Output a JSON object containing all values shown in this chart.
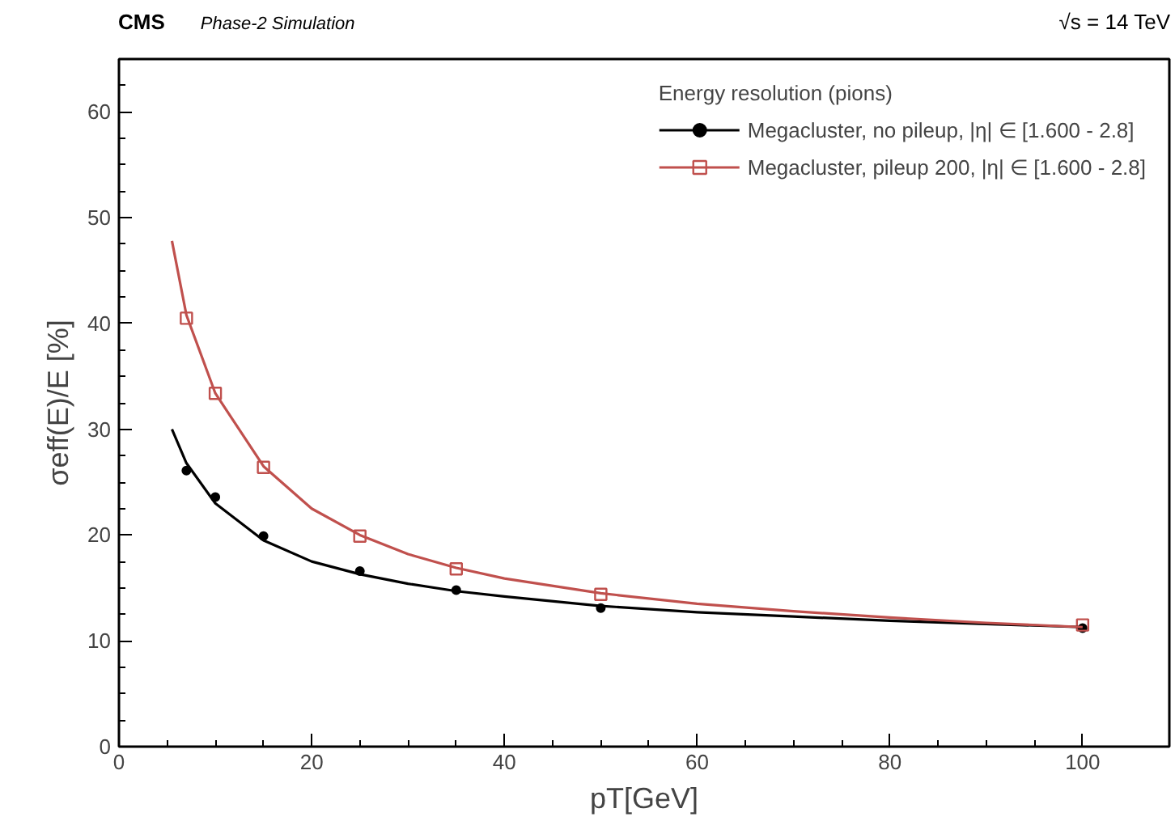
{
  "chart_data": {
    "type": "scatter",
    "xlabel": "pT[GeV]",
    "ylabel": "σeff(E)/E [%]",
    "legend_title": "Energy resolution (pions)",
    "annotations": [
      "CMS",
      "Phase-2 Simulation",
      "√s = 14 TeV"
    ],
    "x": [
      7,
      10,
      15,
      25,
      35,
      50,
      100
    ],
    "series": [
      {
        "name": "Megacluster, no pileup, |η| ∈ [1.600 - 2.8]",
        "color": "#000000",
        "marker": "circle",
        "values": [
          26.1,
          23.6,
          19.9,
          16.6,
          14.8,
          13.1,
          11.2
        ]
      },
      {
        "name": "Megacluster, pileup 200, |η| ∈ [1.600 - 2.8]",
        "color": "#c0504d",
        "marker": "square",
        "values": [
          40.5,
          33.4,
          26.4,
          19.9,
          16.8,
          14.4,
          11.5
        ]
      },
      {
        "type": "line",
        "color": "#000000",
        "x": [
          5.5,
          7,
          10,
          15,
          20,
          25,
          30,
          35,
          40,
          50,
          60,
          70,
          80,
          90,
          100
        ],
        "values": [
          30,
          26.8,
          23,
          19.5,
          17.5,
          16.3,
          15.4,
          14.7,
          14.2,
          13.3,
          12.7,
          12.3,
          11.9,
          11.6,
          11.3
        ]
      },
      {
        "type": "line",
        "color": "#c0504d",
        "x": [
          5.5,
          7,
          10,
          15,
          20,
          25,
          30,
          35,
          40,
          50,
          60,
          70,
          80,
          90,
          100
        ],
        "values": [
          47.8,
          40.8,
          33.4,
          26.5,
          22.5,
          20,
          18.2,
          16.9,
          15.9,
          14.5,
          13.5,
          12.8,
          12.2,
          11.7,
          11.3
        ]
      }
    ],
    "xlim": [
      0,
      109
    ],
    "ylim": [
      0,
      65
    ],
    "xticks": [
      0,
      20,
      40,
      60,
      80,
      100
    ],
    "yticks": [
      0,
      10,
      20,
      30,
      40,
      50,
      60
    ],
    "grid": false,
    "legend": "top right"
  }
}
